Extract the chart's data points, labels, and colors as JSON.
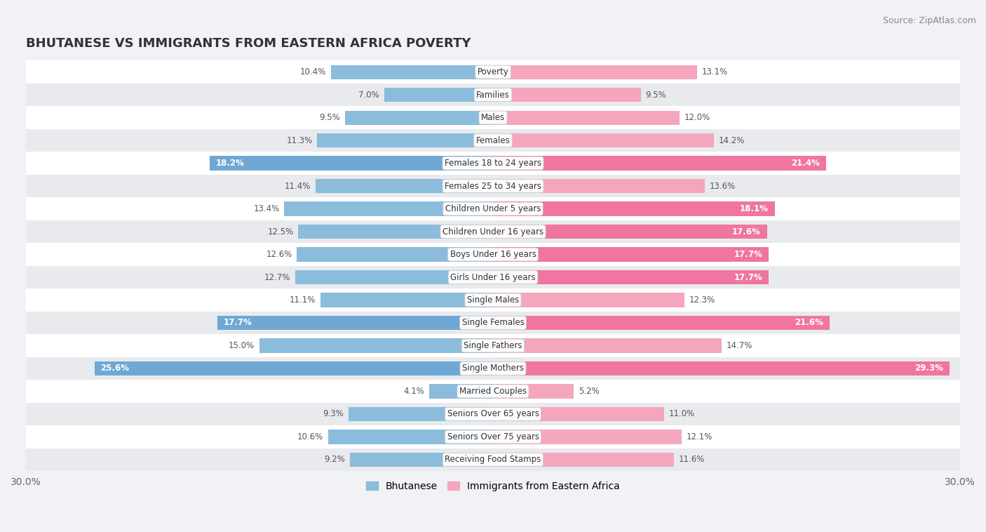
{
  "title": "BHUTANESE VS IMMIGRANTS FROM EASTERN AFRICA POVERTY",
  "source": "Source: ZipAtlas.com",
  "categories": [
    "Poverty",
    "Families",
    "Males",
    "Females",
    "Females 18 to 24 years",
    "Females 25 to 34 years",
    "Children Under 5 years",
    "Children Under 16 years",
    "Boys Under 16 years",
    "Girls Under 16 years",
    "Single Males",
    "Single Females",
    "Single Fathers",
    "Single Mothers",
    "Married Couples",
    "Seniors Over 65 years",
    "Seniors Over 75 years",
    "Receiving Food Stamps"
  ],
  "bhutanese": [
    10.4,
    7.0,
    9.5,
    11.3,
    18.2,
    11.4,
    13.4,
    12.5,
    12.6,
    12.7,
    11.1,
    17.7,
    15.0,
    25.6,
    4.1,
    9.3,
    10.6,
    9.2
  ],
  "eastern_africa": [
    13.1,
    9.5,
    12.0,
    14.2,
    21.4,
    13.6,
    18.1,
    17.6,
    17.7,
    17.7,
    12.3,
    21.6,
    14.7,
    29.3,
    5.2,
    11.0,
    12.1,
    11.6
  ],
  "color_bhutanese": "#8bbcdb",
  "color_eastern_africa": "#f4a7bc",
  "color_bhutanese_highlight": "#6fa8d4",
  "color_eastern_africa_highlight": "#f075a0",
  "bar_height": 0.62,
  "xlim_left": -30.0,
  "xlim_right": 30.0,
  "highlight_thresh_bhu": 16.5,
  "highlight_thresh_ea": 16.5,
  "bg_color": "#f0f2f5",
  "row_color_even": "#ffffff",
  "row_color_odd": "#e8eaed",
  "legend_label_bhutanese": "Bhutanese",
  "legend_label_eastern_africa": "Immigrants from Eastern Africa",
  "title_fontsize": 13,
  "source_fontsize": 9,
  "label_fontsize": 8.5,
  "cat_fontsize": 8.5
}
